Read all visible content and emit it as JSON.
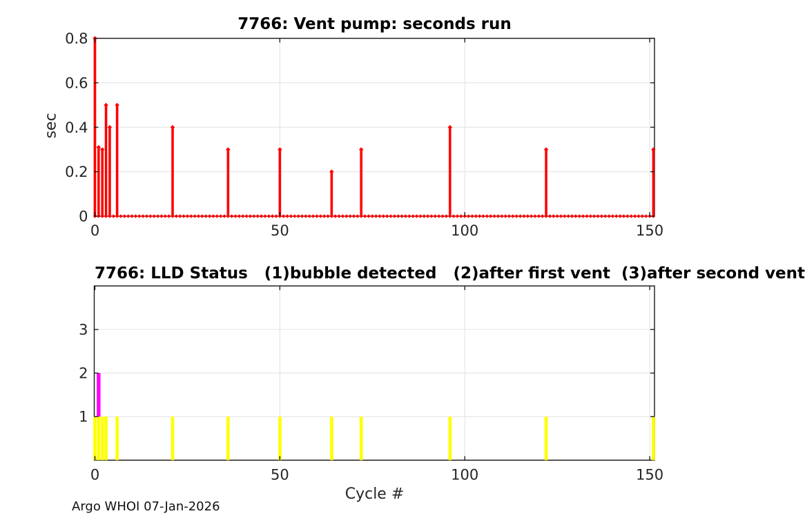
{
  "figure": {
    "footer": "Argo WHOI 07-Jan-2026",
    "background_color": "#ffffff",
    "axis_color": "#151515",
    "grid_color": "#e6e6e6",
    "tick_label_color": "#262626"
  },
  "chart_data": [
    {
      "type": "stem",
      "name": "vent-pump",
      "title": "7766: Vent pump: seconds run",
      "ylabel": "sec",
      "xlabel": "",
      "series_color": "#ff0000",
      "xlim": [
        0,
        151.3
      ],
      "ylim": [
        0,
        0.8
      ],
      "xticks": [
        0,
        50,
        100,
        150
      ],
      "xtick_labels": [
        "0",
        "50",
        "100",
        "150"
      ],
      "yticks": [
        0,
        0.2,
        0.4,
        0.6,
        0.8
      ],
      "ytick_labels": [
        "0",
        "0.2",
        "0.4",
        "0.6",
        "0.8"
      ],
      "grid": true,
      "cycle_range": [
        0,
        151
      ],
      "stems": [
        [
          0,
          0.8
        ],
        [
          1,
          0.31
        ],
        [
          2,
          0.3
        ],
        [
          3,
          0.5
        ],
        [
          4,
          0.4
        ],
        [
          6,
          0.5
        ],
        [
          21,
          0.4
        ],
        [
          36,
          0.3
        ],
        [
          50,
          0.3
        ],
        [
          64,
          0.2
        ],
        [
          72,
          0.3
        ],
        [
          96,
          0.4
        ],
        [
          122,
          0.3
        ],
        [
          151,
          0.3
        ]
      ]
    },
    {
      "type": "bar",
      "name": "lld-status",
      "title": "7766: LLD Status   (1)bubble detected   (2)after first vent  (3)after second vent",
      "ylabel": "",
      "xlabel": "Cycle #",
      "bar_color": "#ffff00",
      "highlight_color": "#ff00ff",
      "xlim": [
        0,
        151.3
      ],
      "ylim": [
        0,
        4
      ],
      "xticks": [
        0,
        50,
        100,
        150
      ],
      "xtick_labels": [
        "0",
        "50",
        "100",
        "150"
      ],
      "yticks": [
        1,
        2,
        3
      ],
      "ytick_labels": [
        "1",
        "2",
        "3"
      ],
      "grid": true,
      "bars": [
        [
          0,
          1
        ],
        [
          1,
          1
        ],
        [
          2,
          1
        ],
        [
          3,
          1
        ],
        [
          6,
          1
        ],
        [
          21,
          1
        ],
        [
          36,
          1
        ],
        [
          50,
          1
        ],
        [
          64,
          1
        ],
        [
          72,
          1
        ],
        [
          96,
          1
        ],
        [
          122,
          1
        ],
        [
          151,
          1
        ]
      ],
      "highlight_bars": [
        {
          "x": 1,
          "y0": 1,
          "y1": 2
        }
      ]
    }
  ]
}
